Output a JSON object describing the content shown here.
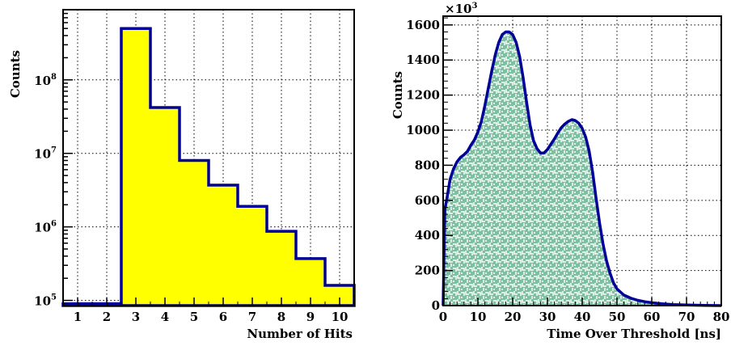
{
  "chart_data": [
    {
      "type": "bar",
      "subtype": "step-histogram",
      "title": "",
      "xlabel": "Number of Hits",
      "ylabel": "Counts",
      "yscale": "log",
      "xlim": [
        0.5,
        10.5
      ],
      "ylim": [
        85000,
        900000000
      ],
      "x_ticks": [
        1,
        2,
        3,
        4,
        5,
        6,
        7,
        8,
        9,
        10
      ],
      "y_ticks": [
        {
          "value": 100000,
          "base": "10",
          "exp": "5"
        },
        {
          "value": 1000000,
          "base": "10",
          "exp": "6"
        },
        {
          "value": 10000000,
          "base": "10",
          "exp": "7"
        },
        {
          "value": 100000000,
          "base": "10",
          "exp": "8"
        }
      ],
      "grid": true,
      "fill_color": "#ffff00",
      "line_color": "#000099",
      "categories": [
        1,
        2,
        3,
        4,
        5,
        6,
        7,
        8,
        9,
        10
      ],
      "values": [
        90000,
        90000,
        500000000,
        42000000,
        8000000,
        3700000,
        1900000,
        870000,
        370000,
        160000
      ]
    },
    {
      "type": "area",
      "subtype": "hatched-histogram",
      "title": "",
      "xlabel": "Time Over Threshold [ns]",
      "ylabel": "Counts",
      "y_multiplier": {
        "base": "×10",
        "exp": "3"
      },
      "xlim": [
        0,
        80
      ],
      "ylim": [
        0,
        1650
      ],
      "x_ticks": [
        0,
        10,
        20,
        30,
        40,
        50,
        60,
        70,
        80
      ],
      "y_ticks": [
        0,
        200,
        400,
        600,
        800,
        1000,
        1200,
        1400,
        1600
      ],
      "grid": true,
      "fill_color": "#7dbfa0",
      "line_color": "#000099",
      "x": [
        0,
        0.5,
        1,
        2,
        3,
        4,
        5,
        6,
        7,
        8,
        9,
        10,
        11,
        12,
        13,
        14,
        15,
        16,
        17,
        18,
        19,
        20,
        21,
        22,
        23,
        24,
        25,
        26,
        27,
        28,
        29,
        30,
        31,
        32,
        33,
        34,
        35,
        36,
        37,
        38,
        39,
        40,
        41,
        42,
        43,
        44,
        45,
        46,
        47,
        48,
        49,
        50,
        52,
        54,
        56,
        58,
        60,
        63,
        66,
        70,
        75,
        80
      ],
      "y": [
        0,
        550,
        600,
        720,
        780,
        820,
        845,
        860,
        880,
        915,
        945,
        990,
        1050,
        1140,
        1240,
        1340,
        1430,
        1500,
        1545,
        1560,
        1560,
        1545,
        1500,
        1420,
        1300,
        1160,
        1030,
        940,
        895,
        870,
        870,
        890,
        920,
        950,
        985,
        1015,
        1035,
        1050,
        1060,
        1055,
        1040,
        1010,
        960,
        880,
        760,
        610,
        470,
        350,
        255,
        185,
        130,
        95,
        60,
        42,
        30,
        22,
        16,
        10,
        6,
        3,
        1,
        0
      ]
    }
  ]
}
